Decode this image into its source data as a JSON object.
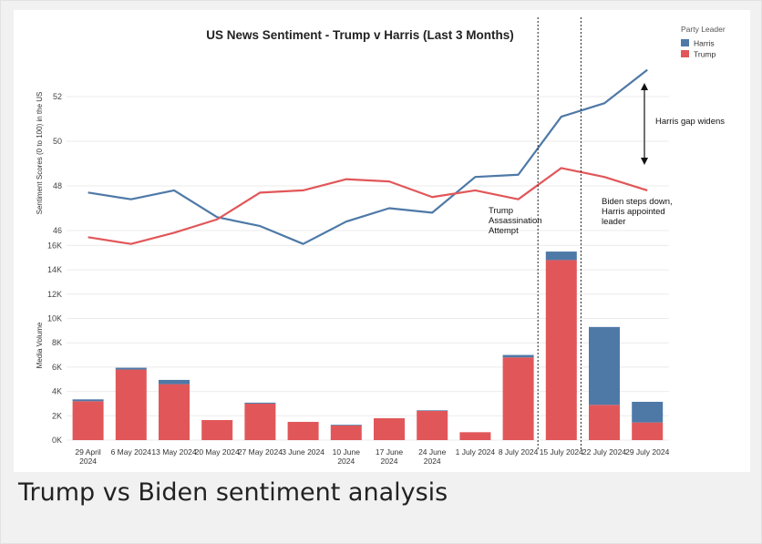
{
  "caption": "Trump vs Biden sentiment analysis",
  "chart_data": [
    {
      "type": "line",
      "title": "US News Sentiment - Trump v Harris (Last 3 Months)",
      "ylabel": "Sentiment Scores (0 to 100) in the US",
      "xlabel": "",
      "ylim": [
        44.9,
        53.9
      ],
      "yticks": [
        46,
        48,
        50,
        52
      ],
      "grid": true,
      "legend": {
        "title": "Party Leader",
        "placement": "top-right",
        "items": [
          {
            "label": "Harris",
            "color": "#4e79a7"
          },
          {
            "label": "Trump",
            "color": "#e15759"
          }
        ]
      },
      "x": [
        "29 April 2024",
        "6 May 2024",
        "13 May 2024",
        "20 May 2024",
        "27 May 2024",
        "3 June 2024",
        "10 June 2024",
        "17 June 2024",
        "24 June 2024",
        "1 July 2024",
        "8 July 2024",
        "15 July 2024",
        "22 July 2024",
        "29 July 2024"
      ],
      "series": [
        {
          "name": "Harris",
          "color": "#4e79a7",
          "values": [
            47.7,
            47.4,
            47.8,
            46.6,
            46.2,
            45.4,
            46.4,
            47.0,
            46.8,
            48.4,
            48.5,
            51.1,
            51.7,
            53.2
          ]
        },
        {
          "name": "Trump",
          "color": "#e15759",
          "values": [
            45.7,
            45.4,
            45.9,
            46.5,
            47.7,
            47.8,
            48.3,
            48.2,
            47.5,
            47.8,
            47.4,
            48.8,
            48.4,
            47.8
          ]
        }
      ],
      "annotations": [
        {
          "text": "Harris gap widens"
        },
        {
          "text": "Trump Assassination Attempt"
        },
        {
          "text": "Biden steps down, Harris appointed leader"
        }
      ],
      "event_lines": [
        "15 July 2024",
        "22 July 2024"
      ]
    },
    {
      "type": "bar",
      "stacked": true,
      "ylabel": "Media Volume",
      "xlabel": "",
      "ylim": [
        0,
        16000
      ],
      "ytick_labels": [
        "0K",
        "2K",
        "4K",
        "6K",
        "8K",
        "10K",
        "12K",
        "14K",
        "16K"
      ],
      "yticks": [
        0,
        2000,
        4000,
        6000,
        8000,
        10000,
        12000,
        14000,
        16000
      ],
      "categories": [
        "29 April 2024",
        "6 May 2024",
        "13 May 2024",
        "20 May 2024",
        "27 May 2024",
        "3 June 2024",
        "10 June 2024",
        "17 June 2024",
        "24 June 2024",
        "1 July 2024",
        "8 July 2024",
        "15 July 2024",
        "22 July 2024",
        "29 July 2024"
      ],
      "series": [
        {
          "name": "Trump",
          "color": "#e15759",
          "values": [
            3200,
            5800,
            4600,
            1650,
            3000,
            1500,
            1200,
            1800,
            2400,
            650,
            6800,
            14800,
            2900,
            1450
          ]
        },
        {
          "name": "Harris",
          "color": "#4e79a7",
          "values": [
            150,
            150,
            350,
            0,
            80,
            0,
            60,
            0,
            50,
            0,
            200,
            700,
            6400,
            1700
          ]
        }
      ]
    }
  ]
}
